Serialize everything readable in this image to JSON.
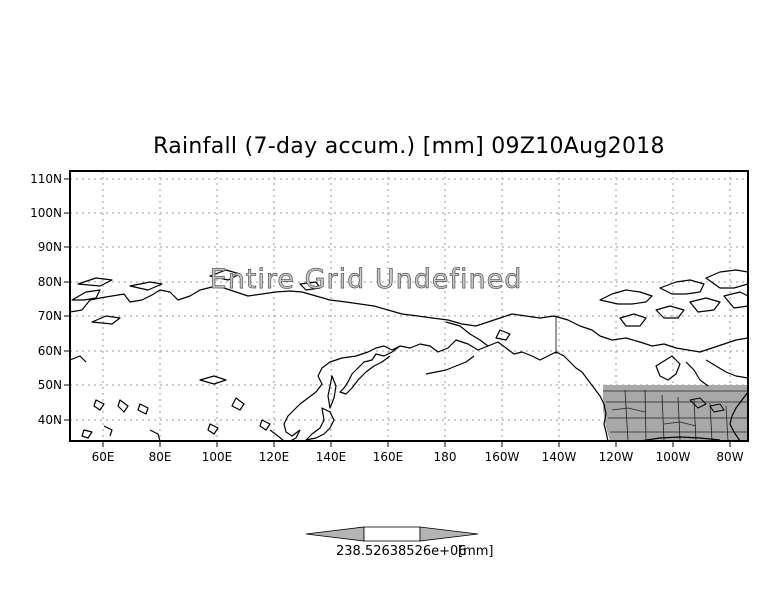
{
  "title": "Rainfall (7-day accum.) [mm] 09Z10Aug2018",
  "overlay_text": "Entire Grid Undefined",
  "lat_labels": [
    "110N",
    "100N",
    "90N",
    "80N",
    "70N",
    "60N",
    "50N",
    "40N"
  ],
  "lon_labels": [
    "60E",
    "80E",
    "100E",
    "120E",
    "140E",
    "160E",
    "180",
    "160W",
    "140W",
    "120W",
    "100W",
    "80W"
  ],
  "colorbar": {
    "value_label": "238.52638526e+06",
    "unit_label": "[mm]"
  },
  "colors": {
    "data_fill": "#a8a8a8",
    "colorbar_fill": "#b4b4b4",
    "grid": "#9a9a9a"
  }
}
